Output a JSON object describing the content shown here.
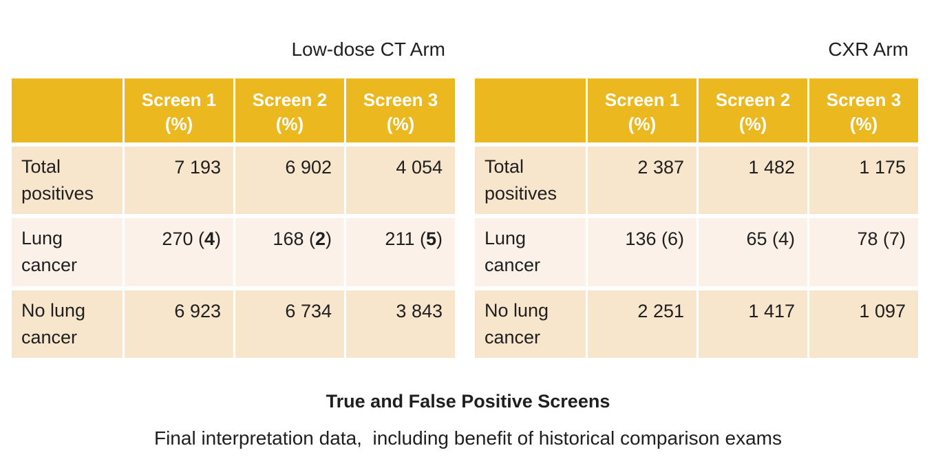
{
  "colors": {
    "header_bg": "#EBB820",
    "header_text": "#FFFFFF",
    "row_dark_bg": "#F7E5CC",
    "row_light_bg": "#FBF1E9",
    "text": "#1F1F1F"
  },
  "captions": {
    "title": "True and False Positive Screens",
    "subtitle": "Final interpretation data,  including benefit of historical comparison exams"
  },
  "tables": [
    {
      "title": "Low-dose CT Arm",
      "columns": [
        {
          "label": "Screen 1",
          "unit": "(%)"
        },
        {
          "label": "Screen 2",
          "unit": "(%)"
        },
        {
          "label": "Screen 3",
          "unit": "(%)"
        }
      ],
      "paren_bold": true,
      "rows": [
        {
          "label": "Total positives",
          "values": [
            {
              "text": "7 193"
            },
            {
              "text": "6 902"
            },
            {
              "text": "4 054"
            }
          ]
        },
        {
          "label": "Lung cancer",
          "values": [
            {
              "text": "270",
              "paren": "4"
            },
            {
              "text": "168",
              "paren": "2"
            },
            {
              "text": "211",
              "paren": "5"
            }
          ]
        },
        {
          "label": "No lung cancer",
          "values": [
            {
              "text": "6 923"
            },
            {
              "text": "6 734"
            },
            {
              "text": "3 843"
            }
          ]
        }
      ]
    },
    {
      "title": "CXR Arm",
      "columns": [
        {
          "label": "Screen 1",
          "unit": "(%)"
        },
        {
          "label": "Screen 2",
          "unit": "(%)"
        },
        {
          "label": "Screen 3",
          "unit": "(%)"
        }
      ],
      "paren_bold": false,
      "rows": [
        {
          "label": "Total positives",
          "values": [
            {
              "text": "2 387"
            },
            {
              "text": "1 482"
            },
            {
              "text": "1 175"
            }
          ]
        },
        {
          "label": "Lung cancer",
          "values": [
            {
              "text": "136",
              "paren": "6"
            },
            {
              "text": "65",
              "paren": "4"
            },
            {
              "text": "78",
              "paren": "7"
            }
          ]
        },
        {
          "label": "No lung cancer",
          "values": [
            {
              "text": "2 251"
            },
            {
              "text": "1 417"
            },
            {
              "text": "1 097"
            }
          ]
        }
      ]
    }
  ]
}
